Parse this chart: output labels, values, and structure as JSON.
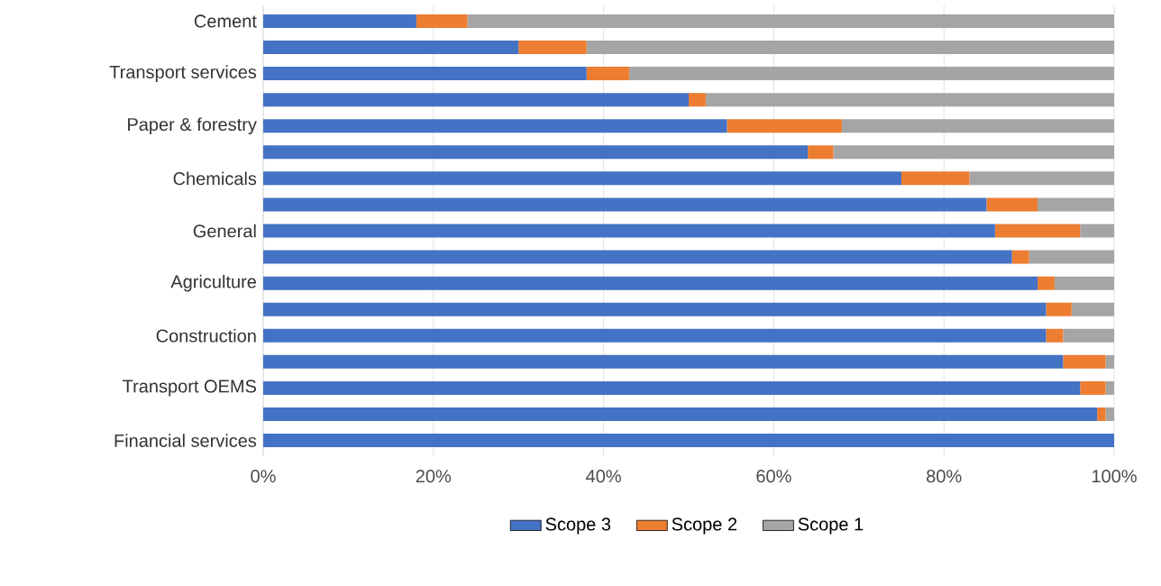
{
  "chart_data": {
    "type": "bar",
    "orientation": "horizontal",
    "stacked": true,
    "categories": [
      "Cement",
      null,
      "Transport services",
      null,
      "Paper & forestry",
      null,
      "Chemicals",
      null,
      "General",
      null,
      "Agriculture",
      null,
      "Construction",
      null,
      "Transport OEMS",
      null,
      "Financial services"
    ],
    "series": [
      {
        "name": "Scope 3",
        "color": "#4472c4",
        "values": [
          18,
          30,
          38,
          50,
          54.5,
          64,
          75,
          85,
          86,
          88,
          91,
          92,
          92,
          94,
          96,
          98,
          100
        ]
      },
      {
        "name": "Scope 2",
        "color": "#ed7d31",
        "values": [
          6,
          8,
          5,
          2,
          13.5,
          3,
          8,
          6,
          10,
          2,
          2,
          3,
          2,
          5,
          3,
          1,
          0
        ]
      },
      {
        "name": "Scope 1",
        "color": "#a5a5a5",
        "values": [
          76,
          62,
          57,
          48,
          32,
          33,
          17,
          9,
          4,
          10,
          7,
          5,
          6,
          1,
          1,
          1,
          0
        ]
      }
    ],
    "xlim": [
      0,
      100
    ],
    "xticks": [
      {
        "value": 0,
        "label": "0%"
      },
      {
        "value": 20,
        "label": "20%"
      },
      {
        "value": 40,
        "label": "40%"
      },
      {
        "value": 60,
        "label": "60%"
      },
      {
        "value": 80,
        "label": "80%"
      },
      {
        "value": 100,
        "label": "100%"
      }
    ],
    "grid": "x",
    "legend": "bottom"
  }
}
